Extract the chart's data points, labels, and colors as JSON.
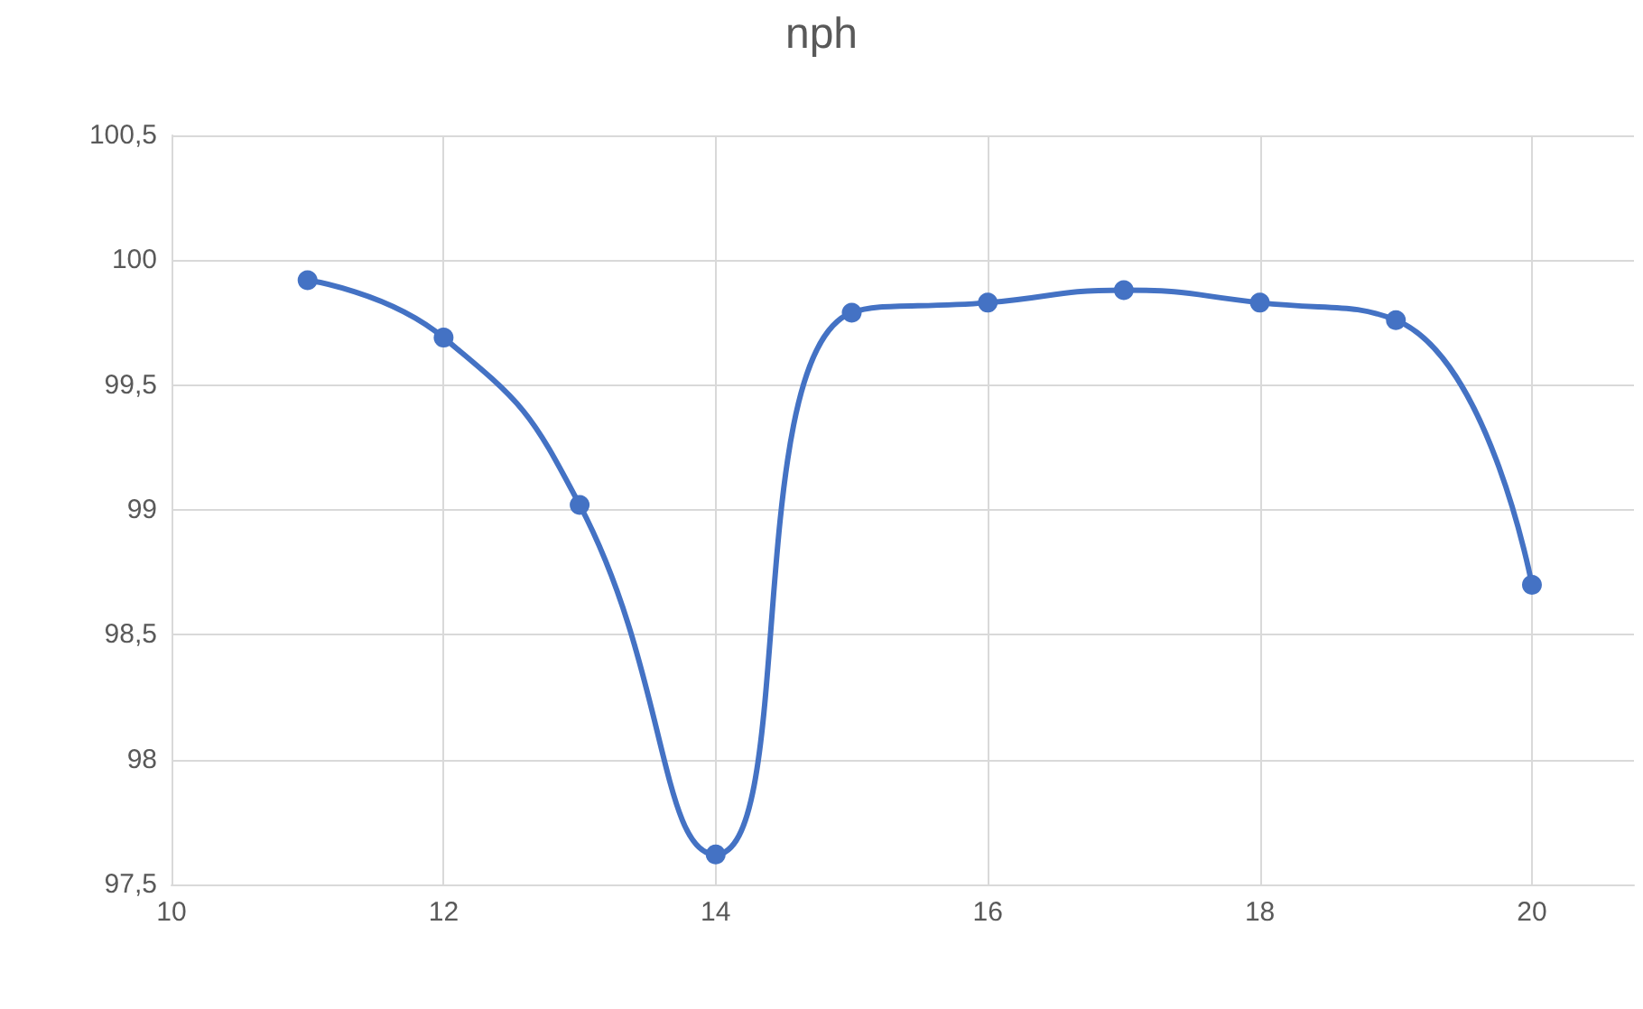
{
  "chart_data": {
    "type": "line",
    "title": "nph",
    "x": [
      11,
      12,
      13,
      14,
      15,
      16,
      17,
      18,
      19,
      20
    ],
    "series": [
      {
        "color": "#4472c4",
        "values": [
          99.92,
          99.69,
          99.02,
          97.62,
          99.79,
          99.83,
          99.88,
          99.83,
          99.76,
          98.7
        ]
      }
    ],
    "xlim": [
      10,
      20.75
    ],
    "xticks": [
      10,
      12,
      14,
      16,
      18,
      20
    ],
    "ylim": [
      97.5,
      100.5
    ],
    "yticks": [
      {
        "value": 97.5,
        "label": "97,5"
      },
      98,
      {
        "value": 98.5,
        "label": "98,5"
      },
      99,
      {
        "value": 99.5,
        "label": "99,5"
      },
      100,
      {
        "value": 100.5,
        "label": "100,5"
      }
    ],
    "grid": true,
    "marker": "circle",
    "line_style": "solid"
  }
}
